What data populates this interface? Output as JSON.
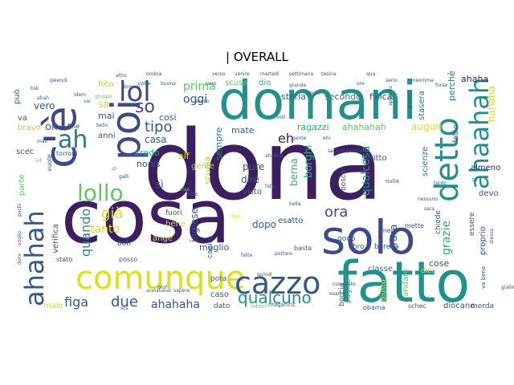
{
  "title": "| OVERALL",
  "palette": {
    "deep_purple": "#3b1f5e",
    "indigo": "#3d4a8a",
    "slate_blue": "#33598c",
    "teal_blue": "#2a788e",
    "teal": "#21918c",
    "green_teal": "#27ad81",
    "green": "#5ec962",
    "lime": "#aadc32",
    "yellow": "#d8e219",
    "bright_yellow": "#e6e419"
  },
  "words": [
    {
      "text": "dona",
      "color": "deep_purple"
    },
    {
      "text": "cosa",
      "color": "deep_purple"
    },
    {
      "text": "domani",
      "color": "teal"
    },
    {
      "text": "fatto",
      "color": "teal"
    },
    {
      "text": "solo",
      "color": "indigo"
    },
    {
      "text": "comunque",
      "color": "yellow"
    },
    {
      "text": "c'è",
      "color": "indigo"
    },
    {
      "text": "poi",
      "color": "indigo"
    },
    {
      "text": "cazzo",
      "color": "slate_blue"
    },
    {
      "text": "ahahah",
      "color": "slate_blue"
    },
    {
      "text": "detto",
      "color": "teal"
    },
    {
      "text": "lol",
      "color": "indigo"
    },
    {
      "text": "lollo",
      "color": "green"
    },
    {
      "text": "ah",
      "color": "teal_blue"
    },
    {
      "text": "qualcuno",
      "color": "teal"
    },
    {
      "text": "ahaahah",
      "color": "teal"
    },
    {
      "text": "figa",
      "color": "slate_blue"
    },
    {
      "text": "due",
      "color": "slate_blue"
    },
    {
      "text": "già",
      "color": "yellow"
    },
    {
      "text": "ahahaha",
      "color": "slate_blue"
    },
    {
      "text": "tipo",
      "color": "slate_blue"
    },
    {
      "text": "quando",
      "color": "teal"
    },
    {
      "text": "tanto",
      "color": "yellow"
    },
    {
      "text": "ora",
      "color": "indigo"
    },
    {
      "text": "so",
      "color": "indigo"
    },
    {
      "text": "grazie",
      "color": "green_teal"
    },
    {
      "text": "prima",
      "color": "green"
    },
    {
      "text": "oggi",
      "color": "slate_blue"
    },
    {
      "text": "storia",
      "color": "slate_blue"
    },
    {
      "text": "secondo",
      "color": "teal_blue"
    },
    {
      "text": "fisica",
      "color": "slate_blue"
    },
    {
      "text": "ahahahah",
      "color": "green"
    },
    {
      "text": "ragazzi",
      "color": "green_teal"
    },
    {
      "text": "eh",
      "color": "deep_purple"
    },
    {
      "text": "auguri",
      "color": "yellow"
    },
    {
      "text": "perchè",
      "color": "teal_blue"
    },
    {
      "text": "ahaha",
      "color": "deep_purple"
    },
    {
      "text": "stasera",
      "color": "teal_blue"
    },
    {
      "text": "hahaha",
      "color": "yellow"
    },
    {
      "text": "qualcosa",
      "color": "teal"
    },
    {
      "text": "scritto",
      "color": "slate_blue"
    },
    {
      "text": "scienze",
      "color": "teal_blue"
    },
    {
      "text": "almeno",
      "color": "deep_purple"
    },
    {
      "text": "borghi",
      "color": "green_teal"
    },
    {
      "text": "berna",
      "color": "green_teal"
    },
    {
      "text": "sempre",
      "color": "teal_blue"
    },
    {
      "text": "scuola",
      "color": "lime"
    },
    {
      "text": "pure",
      "color": "slate_blue"
    },
    {
      "text": "dire",
      "color": "slate_blue"
    },
    {
      "text": "visto",
      "color": "slate_blue"
    },
    {
      "text": "inglese",
      "color": "slate_blue"
    },
    {
      "text": "meglio",
      "color": "slate_blue"
    },
    {
      "text": "dopo",
      "color": "slate_blue"
    },
    {
      "text": "esatto",
      "color": "slate_blue"
    },
    {
      "text": "fraca",
      "color": "slate_blue"
    },
    {
      "text": "cose",
      "color": "slate_blue"
    },
    {
      "text": "classe",
      "color": "teal_blue"
    },
    {
      "text": "mate",
      "color": "slate_blue"
    },
    {
      "text": "casa",
      "color": "slate_blue"
    },
    {
      "text": "credo",
      "color": "green_teal"
    },
    {
      "text": "nonis",
      "color": "slate_blue"
    },
    {
      "text": "sì",
      "color": "slate_blue"
    },
    {
      "text": "gente",
      "color": "lime"
    },
    {
      "text": "alf",
      "color": "yellow"
    },
    {
      "text": "cosi",
      "color": "slate_blue"
    },
    {
      "text": "mai",
      "color": "slate_blue"
    },
    {
      "text": "ok",
      "color": "slate_blue"
    },
    {
      "text": "vero",
      "color": "slate_blue"
    },
    {
      "text": "sa",
      "color": "yellow"
    },
    {
      "text": "foto",
      "color": "lime"
    },
    {
      "text": "anni",
      "color": "slate_blue"
    },
    {
      "text": "scusa",
      "color": "green"
    },
    {
      "text": "dio",
      "color": "green_teal"
    },
    {
      "text": "può",
      "color": "slate_blue"
    },
    {
      "text": "va",
      "color": "slate_blue"
    },
    {
      "text": "bravo",
      "color": "lime"
    },
    {
      "text": "scec",
      "color": "slate_blue"
    },
    {
      "text": "parte",
      "color": "green"
    },
    {
      "text": "verifica",
      "color": "slate_blue"
    },
    {
      "text": "bene",
      "color": "yellow"
    },
    {
      "text": "ange",
      "color": "yellow"
    },
    {
      "text": "fuori",
      "color": "slate_blue"
    },
    {
      "text": "pota",
      "color": "slate_blue"
    },
    {
      "text": "caso",
      "color": "slate_blue"
    },
    {
      "text": "dato",
      "color": "slate_blue"
    },
    {
      "text": "male",
      "color": "yellow"
    },
    {
      "text": "boccia",
      "color": "slate_blue"
    },
    {
      "text": "pagine",
      "color": "green_teal"
    },
    {
      "text": "giusto",
      "color": "yellow"
    },
    {
      "text": "andare",
      "color": "green"
    },
    {
      "text": "dice",
      "color": "yellow"
    },
    {
      "text": "diocane",
      "color": "slate_blue"
    },
    {
      "text": "merda",
      "color": "slate_blue"
    },
    {
      "text": "proprio",
      "color": "slate_blue"
    },
    {
      "text": "essere",
      "color": "slate_blue"
    },
    {
      "text": "chiede",
      "color": "slate_blue"
    },
    {
      "text": "devo",
      "color": "slate_blue"
    },
    {
      "text": "bosco",
      "color": "slate_blue"
    },
    {
      "text": "fabio",
      "color": "slate_blue"
    },
    {
      "text": "godo",
      "color": "slate_blue"
    },
    {
      "text": "libro",
      "color": "slate_blue"
    },
    {
      "text": "borella",
      "color": "slate_blue"
    },
    {
      "text": "capito",
      "color": "slate_blue"
    },
    {
      "text": "basta",
      "color": "slate_blue"
    },
    {
      "text": "meno",
      "color": "slate_blue"
    },
    {
      "text": "mette",
      "color": "slate_blue"
    },
    {
      "text": "fine",
      "color": "slate_blue"
    },
    {
      "text": "vuole",
      "color": "slate_blue"
    },
    {
      "text": "torroni",
      "color": "slate_blue"
    },
    {
      "text": "boh",
      "color": "slate_blue"
    },
    {
      "text": "posso",
      "color": "slate_blue"
    },
    {
      "text": "stato",
      "color": "slate_blue"
    },
    {
      "text": "schec",
      "color": "slate_blue"
    },
    {
      "text": "obama",
      "color": "slate_blue"
    },
    {
      "text": "magaricic",
      "color": "slate_blue"
    },
    {
      "text": "inferri",
      "color": "green"
    },
    {
      "text": "scs",
      "color": "slate_blue"
    },
    {
      "text": "idem",
      "color": "slate_blue"
    },
    {
      "text": "gwendi",
      "color": "slate_blue"
    },
    {
      "text": "sapere",
      "color": "slate_blue"
    },
    {
      "text": "penso",
      "color": "slate_blue"
    },
    {
      "text": "bello",
      "color": "slate_blue"
    },
    {
      "text": "ciao",
      "color": "green"
    },
    {
      "text": "nulla",
      "color": "slate_blue"
    },
    {
      "text": "tutto",
      "color": "slate_blue"
    },
    {
      "text": "figo",
      "color": "yellow"
    },
    {
      "text": "grande",
      "color": "slate_blue"
    },
    {
      "text": "tempo",
      "color": "slate_blue"
    },
    {
      "text": "forse",
      "color": "slate_blue"
    },
    {
      "text": "gruppo",
      "color": "green"
    },
    {
      "text": "vai",
      "color": "slate_blue"
    },
    {
      "text": "xd",
      "color": "green"
    },
    {
      "text": "giorno",
      "color": "slate_blue"
    },
    {
      "text": "appunto",
      "color": "slate_blue"
    },
    {
      "text": "voti",
      "color": "slate_blue"
    },
    {
      "text": "galli",
      "color": "slate_blue"
    },
    {
      "text": "ahahahahah",
      "color": "slate_blue"
    },
    {
      "text": "comprato",
      "color": "slate_blue"
    },
    {
      "text": "esame",
      "color": "slate_blue"
    },
    {
      "text": "prof",
      "color": "slate_blue"
    },
    {
      "text": "fatta",
      "color": "slate_blue"
    },
    {
      "text": "quindi",
      "color": "slate_blue"
    },
    {
      "text": "domani",
      "color": "slate_blue"
    },
    {
      "text": "buona",
      "color": "slate_blue"
    },
    {
      "text": "notte",
      "color": "slate_blue"
    },
    {
      "text": "pero",
      "color": "slate_blue"
    },
    {
      "text": "venire",
      "color": "slate_blue"
    },
    {
      "text": "martedì",
      "color": "slate_blue"
    },
    {
      "text": "settimana",
      "color": "slate_blue"
    },
    {
      "text": "tesina",
      "color": "slate_blue"
    },
    {
      "text": "ore",
      "color": "slate_blue"
    },
    {
      "text": "qua",
      "color": "slate_blue"
    },
    {
      "text": "serio",
      "color": "slate_blue"
    },
    {
      "text": "insomma",
      "color": "slate_blue"
    },
    {
      "text": "altro",
      "color": "slate_blue"
    },
    {
      "text": "ombra",
      "color": "slate_blue"
    },
    {
      "text": "verso",
      "color": "slate_blue"
    },
    {
      "text": "gente",
      "color": "slate_blue"
    },
    {
      "text": "ahahha",
      "color": "slate_blue"
    },
    {
      "text": "ehi",
      "color": "slate_blue"
    },
    {
      "text": "saranno",
      "color": "slate_blue"
    },
    {
      "text": "pensavo",
      "color": "slate_blue"
    },
    {
      "text": "fate",
      "color": "slate_blue"
    },
    {
      "text": "portare",
      "color": "slate_blue"
    },
    {
      "text": "ci",
      "color": "slate_blue"
    },
    {
      "text": "bella",
      "color": "slate_blue"
    },
    {
      "text": "nessuno",
      "color": "slate_blue"
    },
    {
      "text": "sara",
      "color": "slate_blue"
    },
    {
      "text": "tu",
      "color": "slate_blue"
    },
    {
      "text": "va bene",
      "color": "slate_blue"
    },
    {
      "text": "giallo",
      "color": "slate_blue"
    },
    {
      "text": "tanto",
      "color": "slate_blue"
    },
    {
      "text": "pochi",
      "color": "slate_blue"
    },
    {
      "text": "voglio",
      "color": "slate_blue"
    },
    {
      "text": "dura",
      "color": "slate_blue"
    },
    {
      "text": "bsk",
      "color": "slate_blue"
    },
    {
      "text": "ahah",
      "color": "slate_blue"
    },
    {
      "text": "mail",
      "color": "slate_blue"
    },
    {
      "text": "stessa",
      "color": "slate_blue"
    }
  ]
}
